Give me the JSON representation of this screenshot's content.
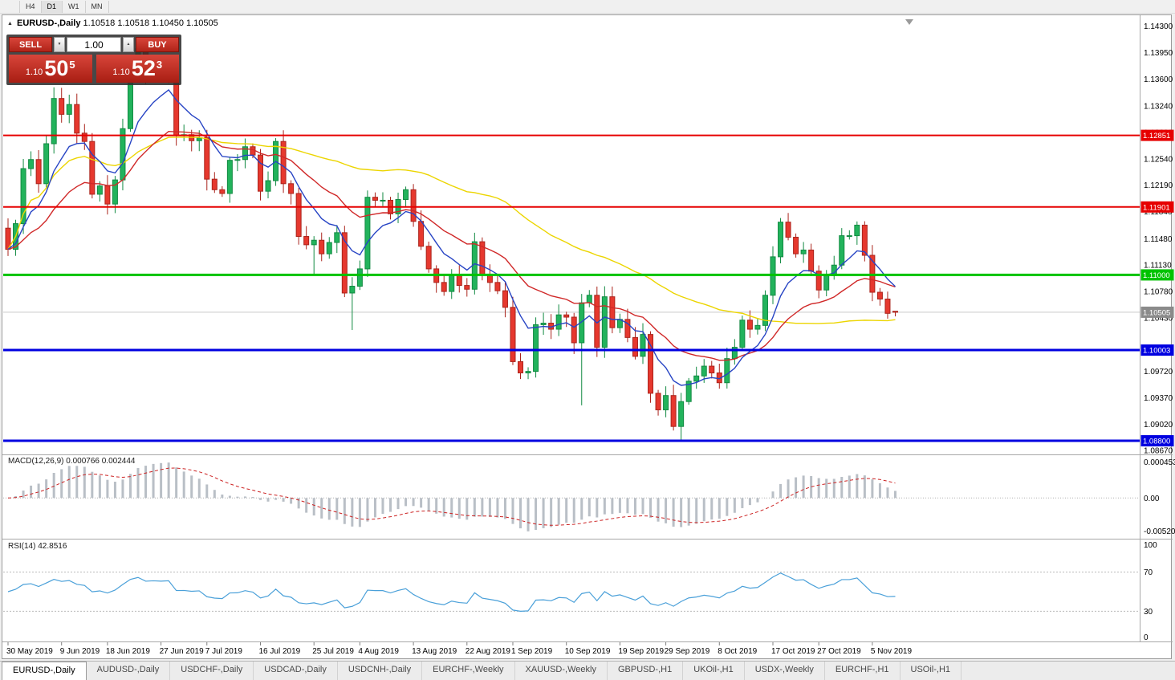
{
  "toolbar": {
    "periods": [
      "H4",
      "D1",
      "W1",
      "MN"
    ],
    "active": "D1"
  },
  "chart_header": {
    "collapse_icon": "▲",
    "symbol_label": "EURUSD-,Daily",
    "ohlc": "1.10518 1.10518 1.10450 1.10505"
  },
  "trade_panel": {
    "sell_label": "SELL",
    "buy_label": "BUY",
    "volume": "1.00",
    "volume_down_icon": "▼",
    "volume_up_icon": "▲",
    "sell_price": {
      "prefix": "1.10",
      "big": "50",
      "sup": "5"
    },
    "buy_price": {
      "prefix": "1.10",
      "big": "52",
      "sup": "3"
    }
  },
  "price_scale": {
    "labels": [
      "1.14300",
      "1.13950",
      "1.13600",
      "1.13240",
      "1.12890",
      "1.12540",
      "1.12190",
      "1.11840",
      "1.11480",
      "1.11130",
      "1.10780",
      "1.10430",
      "1.09720",
      "1.09370",
      "1.09020",
      "1.08670"
    ],
    "current": {
      "value": 1.10505,
      "label": "1.10505",
      "color": "#8a8a8a"
    }
  },
  "levels": [
    {
      "price": 1.12851,
      "label": "1.12851",
      "color": "#e60000",
      "width": 2
    },
    {
      "price": 1.11901,
      "label": "1.11901",
      "color": "#e60000",
      "width": 2
    },
    {
      "price": 1.11,
      "label": "1.11000",
      "color": "#00c300",
      "width": 3
    },
    {
      "price": 1.10003,
      "label": "1.10003",
      "color": "#0000e0",
      "width": 3
    },
    {
      "price": 1.088,
      "label": "1.08800",
      "color": "#0000e0",
      "width": 3
    }
  ],
  "indicators": {
    "macd": {
      "header": "MACD(12,26,9) 0.000766 0.002444",
      "fast": 12,
      "slow": 26,
      "signal": 9,
      "scale_top": "0.0004536",
      "scale_mid": "0.00",
      "scale_bottom": "-0.005205"
    },
    "rsi": {
      "header": "RSI(14) 42.8516",
      "period": 14,
      "levels": [
        70,
        30
      ],
      "scale": [
        "100",
        "70",
        "30",
        "0"
      ]
    }
  },
  "x_axis": {
    "labels": [
      "30 May 2019",
      "9 Jun 2019",
      "18 Jun 2019",
      "27 Jun 2019",
      "7 Jul 2019",
      "16 Jul 2019",
      "25 Jul 2019",
      "4 Aug 2019",
      "13 Aug 2019",
      "22 Aug 2019",
      "1 Sep 2019",
      "10 Sep 2019",
      "19 Sep 2019",
      "29 Sep 2019",
      "8 Oct 2019",
      "17 Oct 2019",
      "27 Oct 2019",
      "5 Nov 2019"
    ],
    "tick_indices": [
      0,
      7,
      13,
      20,
      26,
      33,
      40,
      46,
      53,
      60,
      66,
      73,
      80,
      86,
      93,
      100,
      106,
      113
    ]
  },
  "tabs": {
    "items": [
      {
        "label": "EURUSD-,Daily",
        "active": true
      },
      {
        "label": "AUDUSD-,Daily",
        "active": false
      },
      {
        "label": "USDCHF-,Daily",
        "active": false
      },
      {
        "label": "USDCAD-,Daily",
        "active": false
      },
      {
        "label": "USDCNH-,Daily",
        "active": false
      },
      {
        "label": "EURCHF-,Weekly",
        "active": false
      },
      {
        "label": "XAUUSD-,Weekly",
        "active": false
      },
      {
        "label": "GBPUSD-,H1",
        "active": false
      },
      {
        "label": "UKOil-,H1",
        "active": false
      },
      {
        "label": "USDX-,Weekly",
        "active": false
      },
      {
        "label": "EURCHF-,H1",
        "active": false
      },
      {
        "label": "USOil-,H1",
        "active": false
      }
    ]
  },
  "chart_data": {
    "type": "candlestick",
    "symbol": "EURUSD-",
    "timeframe": "Daily",
    "title": "EURUSD-,Daily",
    "ylim": [
      1.0863,
      1.1438
    ],
    "open_first": 1.1162,
    "closes": [
      1.1134,
      1.1168,
      1.1241,
      1.1253,
      1.1221,
      1.1274,
      1.1334,
      1.1313,
      1.1326,
      1.1288,
      1.1277,
      1.1207,
      1.1218,
      1.1194,
      1.1226,
      1.1294,
      1.1369,
      1.14,
      1.1365,
      1.1371,
      1.1368,
      1.1373,
      1.1285,
      1.1286,
      1.1278,
      1.1282,
      1.1227,
      1.1213,
      1.1208,
      1.1252,
      1.1253,
      1.127,
      1.1259,
      1.1211,
      1.1225,
      1.1277,
      1.1221,
      1.1208,
      1.1151,
      1.114,
      1.1146,
      1.1128,
      1.1143,
      1.1156,
      1.1076,
      1.1085,
      1.1108,
      1.1203,
      1.1199,
      1.1199,
      1.1181,
      1.12,
      1.1213,
      1.1171,
      1.1138,
      1.1108,
      1.109,
      1.1078,
      1.1099,
      1.1086,
      1.1081,
      1.1144,
      1.1101,
      1.109,
      1.1079,
      1.1057,
      1.0985,
      1.097,
      1.0972,
      1.1034,
      1.1036,
      1.1028,
      1.1047,
      1.1044,
      1.101,
      1.1063,
      1.1073,
      1.1004,
      1.1071,
      1.103,
      1.1041,
      1.1017,
      1.0992,
      1.1021,
      1.0943,
      1.0921,
      1.094,
      1.0899,
      1.0932,
      1.0959,
      1.0966,
      1.0979,
      1.097,
      1.0957,
      1.0989,
      1.1004,
      1.104,
      1.1028,
      1.1033,
      1.1073,
      1.1124,
      1.117,
      1.115,
      1.1128,
      1.1133,
      1.1105,
      1.108,
      1.1099,
      1.1113,
      1.1152,
      1.1152,
      1.1166,
      1.1126,
      1.1077,
      1.1068,
      1.1049,
      1.10505
    ],
    "last_candle": {
      "open": 1.10518,
      "high": 1.10518,
      "low": 1.1045,
      "close": 1.10505
    },
    "spikes": [
      {
        "i": 17,
        "high": 1.1412
      },
      {
        "i": 40,
        "low": 1.1101
      },
      {
        "i": 45,
        "low": 1.1027
      },
      {
        "i": 75,
        "low": 1.0927
      },
      {
        "i": 88,
        "low": 1.0879
      }
    ],
    "moving_averages": [
      {
        "type": "ema",
        "period": 8,
        "color": "#2744c4"
      },
      {
        "type": "ema",
        "period": 21,
        "color": "#d02828"
      },
      {
        "type": "sma",
        "period": 50,
        "color": "#ecd500"
      }
    ]
  },
  "colors": {
    "up_fill": "#22b35c",
    "up_stroke": "#128a42",
    "down_fill": "#e6382e",
    "down_stroke": "#aa241c",
    "macd_hist": "#b9bfc6",
    "macd_signal": "#cc2222",
    "rsi_line": "#4aa0d9",
    "current_line": "#c9c9c9",
    "separator": "#a8a8a8",
    "axis_text": "#000000"
  }
}
